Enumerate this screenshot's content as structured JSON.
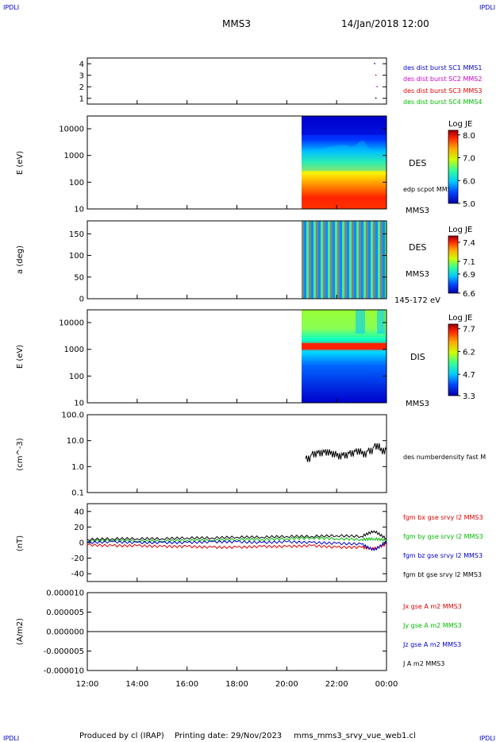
{
  "corners": {
    "top_left": "IPDLI",
    "top_right": "IPDLI",
    "bottom_left": "IPDLI",
    "bottom_right": "IPDLI"
  },
  "header": {
    "spacecraft": "MMS3",
    "datetime": "14/Jan/2018 12:00"
  },
  "footer": {
    "produced_by": "Produced by cl (IRAP)",
    "printing_date": "Printing date: 29/Nov/2023",
    "file_name": "mms_mms3_srvy_vue_web1.cl"
  },
  "colors": {
    "mms1": "#0000cc",
    "mms2": "#cc00cc",
    "mms3": "#dd0000",
    "mms4": "#00bb00",
    "black": "#000000"
  },
  "chart_data": [
    {
      "type": "scatter",
      "panel": "burst",
      "yticks": [
        "1",
        "2",
        "3",
        "4"
      ],
      "ylim": [
        0.5,
        4.5
      ],
      "legend": [
        {
          "name": "des dist burst SC1 MMS1",
          "color": "#0000cc"
        },
        {
          "name": "des dist burst SC2 MMS2",
          "color": "#cc00cc"
        },
        {
          "name": "des dist burst SC3 MMS3",
          "color": "#dd0000"
        },
        {
          "name": "des dist burst SC4 MMS4",
          "color": "#00bb00"
        }
      ],
      "points": [
        {
          "x": 23.5,
          "y": 4
        },
        {
          "x": 23.55,
          "y": 3
        },
        {
          "x": 23.6,
          "y": 2
        },
        {
          "x": 23.55,
          "y": 1
        }
      ]
    },
    {
      "type": "heatmap",
      "panel": "des_energy",
      "ylabel": "E (eV)",
      "scale": "log",
      "ylim": [
        10,
        30000
      ],
      "yticks": [
        "10",
        "100",
        "1000",
        "10000"
      ],
      "data_start": 20.65,
      "labels": [
        "DES",
        "edp scpot MMS3",
        "MMS3"
      ],
      "colorbar": {
        "title": "Log JE",
        "ticks": [
          "8.0",
          "7.0",
          "6.0",
          "5.0"
        ],
        "range": [
          5.0,
          8.2
        ]
      }
    },
    {
      "type": "heatmap",
      "panel": "des_pitch",
      "ylabel": "a (deg)",
      "ylim": [
        0,
        180
      ],
      "yticks": [
        "0",
        "50",
        "100",
        "150"
      ],
      "data_start": 20.65,
      "labels": [
        "DES",
        "MMS3",
        "145-172 eV"
      ],
      "colorbar": {
        "title": "Log JE",
        "ticks": [
          "7.4",
          "7.1",
          "6.9",
          "6.6"
        ],
        "range": [
          6.6,
          7.5
        ]
      }
    },
    {
      "type": "heatmap",
      "panel": "dis_energy",
      "ylabel": "E (eV)",
      "scale": "log",
      "ylim": [
        10,
        30000
      ],
      "yticks": [
        "10",
        "100",
        "1000",
        "10000"
      ],
      "data_start": 20.65,
      "labels": [
        "DIS",
        "MMS3"
      ],
      "colorbar": {
        "title": "Log JE",
        "ticks": [
          "7.7",
          "6.2",
          "4.7",
          "3.3"
        ],
        "range": [
          3.3,
          8.0
        ]
      }
    },
    {
      "type": "line",
      "panel": "density",
      "ylabel": "(cm^-3)",
      "scale": "log",
      "ylim": [
        0.1,
        100
      ],
      "yticks": [
        "0.1",
        "1.0",
        "10.0",
        "100.0"
      ],
      "series": [
        {
          "name": "des numberdensity fast M",
          "color": "#000000",
          "x": [
            20.75,
            21.0,
            21.25,
            21.5,
            21.75,
            22.0,
            22.25,
            22.5,
            22.75,
            23.0,
            23.25,
            23.5,
            23.75,
            24.0
          ],
          "y": [
            2.0,
            3.0,
            3.3,
            3.5,
            3.0,
            2.5,
            2.7,
            3.2,
            3.8,
            3.0,
            4.0,
            6.0,
            4.0,
            4.5
          ]
        }
      ]
    },
    {
      "type": "line",
      "panel": "magnetic",
      "ylabel": "(nT)",
      "ylim": [
        -50,
        50
      ],
      "yticks": [
        "-40",
        "-20",
        "0",
        "20",
        "40"
      ],
      "x": [
        12.0,
        13.0,
        14.0,
        15.0,
        16.0,
        17.0,
        18.0,
        19.0,
        20.0,
        21.0,
        22.0,
        23.0,
        23.5,
        24.0
      ],
      "series": [
        {
          "name": "fgm bx gse srvy l2 MMS3",
          "color": "#dd0000",
          "values": [
            -3,
            -4,
            -4,
            -5,
            -5,
            -6,
            -6,
            -5,
            -5,
            -4,
            -6,
            -6,
            -8,
            -2
          ]
        },
        {
          "name": "fgm by gse srvy l2 MMS3",
          "color": "#00bb00",
          "values": [
            2,
            3,
            2,
            2,
            3,
            3,
            4,
            4,
            5,
            6,
            5,
            4,
            5,
            3
          ]
        },
        {
          "name": "fgm bz gse srvy l2 MMS3",
          "color": "#0000cc",
          "values": [
            0,
            1,
            0,
            0,
            0,
            1,
            1,
            0,
            1,
            0,
            -1,
            -2,
            -10,
            1
          ]
        },
        {
          "name": "fgm bt gse srvy l2 MMS3",
          "color": "#000000",
          "values": [
            4,
            5,
            5,
            5,
            6,
            6,
            7,
            7,
            8,
            8,
            9,
            8,
            15,
            5
          ]
        }
      ]
    },
    {
      "type": "line",
      "panel": "current",
      "ylabel": "(A/m2)",
      "xlabel": "",
      "ylim": [
        -1e-05,
        1e-05
      ],
      "yticks": [
        "-0.000010",
        "-0.000005",
        "0.000000",
        "0.000005",
        "0.000010"
      ],
      "xticks": [
        "12:00",
        "14:00",
        "16:00",
        "18:00",
        "20:00",
        "22:00",
        "00:00"
      ],
      "xlim": [
        12,
        24
      ],
      "legend": [
        {
          "name": "Jx gse A m2 MMS3",
          "color": "#dd0000"
        },
        {
          "name": "Jy gse A m2 MMS3",
          "color": "#00bb00"
        },
        {
          "name": "Jz gse A m2 MMS3",
          "color": "#0000cc"
        },
        {
          "name": "J A m2 MMS3",
          "color": "#000000"
        }
      ],
      "series": [
        {
          "name": "J A m2 MMS3",
          "color": "#000000",
          "x": [
            12,
            24
          ],
          "y": [
            0,
            0
          ]
        }
      ]
    }
  ]
}
